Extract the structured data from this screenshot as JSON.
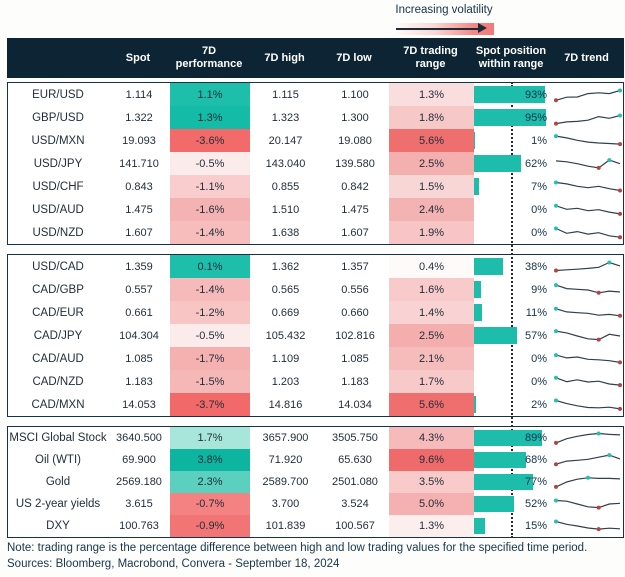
{
  "annotation": {
    "label": "Increasing volatility"
  },
  "columns": [
    "",
    "Spot",
    "7D performance",
    "7D high",
    "7D low",
    "7D trading range",
    "Spot position within range",
    "7D trend"
  ],
  "colors": {
    "header_bg": "#0c2433",
    "teal": "#1dbfab",
    "red": "#f26a6a",
    "navy_text": "#14334a",
    "bar": "#1dbcab",
    "spark_line": "#30404c",
    "spark_min_dot": "#b2433f",
    "spark_max_dot": "#25bfae"
  },
  "chart_data": {
    "type": "table",
    "title": "",
    "column_headers": [
      "Spot",
      "7D performance",
      "7D high",
      "7D low",
      "7D trading range",
      "Spot position within range",
      "7D trend"
    ],
    "blocks": [
      {
        "rows": [
          {
            "label": "EUR/USD",
            "spot": "1.114",
            "perf": "1.1%",
            "perf_color": "#1dbfab",
            "high": "1.115",
            "low": "1.100",
            "range": "1.3%",
            "range_color": "#fadddd",
            "position_pct": 93,
            "position_label": "93%",
            "trend": [
              0.12,
              0.34,
              0.36,
              0.6,
              0.66,
              0.6,
              0.82
            ]
          },
          {
            "label": "GBP/USD",
            "spot": "1.322",
            "perf": "1.3%",
            "perf_color": "#14bba6",
            "high": "1.323",
            "low": "1.300",
            "range": "1.8%",
            "range_color": "#f7c8c8",
            "position_pct": 95,
            "position_label": "95%",
            "trend": [
              0.1,
              0.22,
              0.26,
              0.34,
              0.6,
              0.48,
              0.68
            ]
          },
          {
            "label": "USD/MXN",
            "spot": "19.093",
            "perf": "-3.6%",
            "perf_color": "#f26a6a",
            "high": "20.147",
            "low": "19.080",
            "range": "5.6%",
            "range_color": "#ef6f6f",
            "position_pct": 1,
            "position_label": "1%",
            "trend": [
              0.85,
              0.72,
              0.55,
              0.42,
              0.36,
              0.32,
              0.28
            ]
          },
          {
            "label": "USD/JPY",
            "spot": "141.710",
            "perf": "-0.5%",
            "perf_color": "#fcebeb",
            "high": "143.040",
            "low": "139.580",
            "range": "2.5%",
            "range_color": "#f4afaf",
            "position_pct": 62,
            "position_label": "62%",
            "trend": [
              0.72,
              0.66,
              0.52,
              0.34,
              0.22,
              0.78,
              0.52
            ]
          },
          {
            "label": "USD/CHF",
            "spot": "0.843",
            "perf": "-1.1%",
            "perf_color": "#f9cdcd",
            "high": "0.855",
            "low": "0.842",
            "range": "1.5%",
            "range_color": "#f9d6d6",
            "position_pct": 7,
            "position_label": "7%",
            "trend": [
              0.82,
              0.72,
              0.55,
              0.45,
              0.55,
              0.38,
              0.25
            ]
          },
          {
            "label": "USD/AUD",
            "spot": "1.475",
            "perf": "-1.6%",
            "perf_color": "#f5b2b2",
            "high": "1.510",
            "low": "1.475",
            "range": "2.4%",
            "range_color": "#f4b3b3",
            "position_pct": 0,
            "position_label": "0%",
            "trend": [
              0.8,
              0.55,
              0.62,
              0.45,
              0.52,
              0.35,
              0.22
            ]
          },
          {
            "label": "USD/NZD",
            "spot": "1.607",
            "perf": "-1.4%",
            "perf_color": "#f7bcbc",
            "high": "1.638",
            "low": "1.607",
            "range": "1.9%",
            "range_color": "#f7c5c5",
            "position_pct": 0,
            "position_label": "0%",
            "trend": [
              0.82,
              0.48,
              0.6,
              0.42,
              0.52,
              0.3,
              0.2
            ]
          }
        ]
      },
      {
        "rows": [
          {
            "label": "USD/CAD",
            "spot": "1.359",
            "perf": "0.1%",
            "perf_color": "#1dbfab",
            "high": "1.362",
            "low": "1.357",
            "range": "0.4%",
            "range_color": "#fefafa",
            "position_pct": 38,
            "position_label": "38%",
            "trend": [
              0.25,
              0.3,
              0.34,
              0.4,
              0.48,
              0.82,
              0.58
            ]
          },
          {
            "label": "CAD/GBP",
            "spot": "0.557",
            "perf": "-1.4%",
            "perf_color": "#f7baba",
            "high": "0.565",
            "low": "0.556",
            "range": "1.6%",
            "range_color": "#f8caca",
            "position_pct": 9,
            "position_label": "9%",
            "trend": [
              0.85,
              0.6,
              0.55,
              0.5,
              0.3,
              0.42,
              0.36
            ]
          },
          {
            "label": "CAD/EUR",
            "spot": "0.661",
            "perf": "-1.2%",
            "perf_color": "#f8c5c5",
            "high": "0.669",
            "low": "0.660",
            "range": "1.4%",
            "range_color": "#f9d3d3",
            "position_pct": 11,
            "position_label": "11%",
            "trend": [
              0.8,
              0.58,
              0.52,
              0.48,
              0.34,
              0.4,
              0.3
            ]
          },
          {
            "label": "CAD/JPY",
            "spot": "104.304",
            "perf": "-0.5%",
            "perf_color": "#fcebeb",
            "high": "105.432",
            "low": "102.816",
            "range": "2.5%",
            "range_color": "#f4aeae",
            "position_pct": 57,
            "position_label": "57%",
            "trend": [
              0.85,
              0.72,
              0.5,
              0.3,
              0.24,
              0.62,
              0.5
            ]
          },
          {
            "label": "CAD/AUD",
            "spot": "1.085",
            "perf": "-1.7%",
            "perf_color": "#f5b0b0",
            "high": "1.109",
            "low": "1.085",
            "range": "2.1%",
            "range_color": "#f6bcbc",
            "position_pct": 0,
            "position_label": "0%",
            "trend": [
              0.78,
              0.58,
              0.64,
              0.48,
              0.44,
              0.38,
              0.26
            ]
          },
          {
            "label": "CAD/NZD",
            "spot": "1.183",
            "perf": "-1.5%",
            "perf_color": "#f6b7b7",
            "high": "1.203",
            "low": "1.183",
            "range": "1.7%",
            "range_color": "#f8c9c9",
            "position_pct": 0,
            "position_label": "0%",
            "trend": [
              0.8,
              0.52,
              0.66,
              0.5,
              0.56,
              0.36,
              0.28
            ]
          },
          {
            "label": "CAD/MXN",
            "spot": "14.053",
            "perf": "-3.7%",
            "perf_color": "#f26969",
            "high": "14.816",
            "low": "14.034",
            "range": "5.6%",
            "range_color": "#ef6f6f",
            "position_pct": 2,
            "position_label": "2%",
            "trend": [
              0.82,
              0.6,
              0.44,
              0.32,
              0.3,
              0.34,
              0.22
            ]
          }
        ]
      },
      {
        "rows": [
          {
            "label": "MSCI Global Stock",
            "spot": "3640.500",
            "perf": "1.7%",
            "perf_color": "#a9e6da",
            "high": "3657.900",
            "low": "3505.750",
            "range": "4.3%",
            "range_color": "#f7baba",
            "position_pct": 89,
            "position_label": "89%",
            "trend": [
              0.15,
              0.45,
              0.62,
              0.75,
              0.82,
              0.76,
              0.72
            ]
          },
          {
            "label": "Oil (WTI)",
            "spot": "69.900",
            "perf": "3.8%",
            "perf_color": "#0db4a0",
            "high": "71.920",
            "low": "65.630",
            "range": "9.6%",
            "range_color": "#ef6a6a",
            "position_pct": 68,
            "position_label": "68%",
            "trend": [
              0.2,
              0.42,
              0.48,
              0.55,
              0.7,
              0.85,
              0.58
            ]
          },
          {
            "label": "Gold",
            "spot": "2569.180",
            "perf": "2.3%",
            "perf_color": "#5bd0bf",
            "high": "2589.700",
            "low": "2501.080",
            "range": "3.5%",
            "range_color": "#f9caca",
            "position_pct": 77,
            "position_label": "77%",
            "trend": [
              0.15,
              0.5,
              0.7,
              0.8,
              0.76,
              0.76,
              0.72
            ]
          },
          {
            "label": "US 2-year yields",
            "spot": "3.615",
            "perf": "-0.7%",
            "perf_color": "#f58282",
            "high": "3.700",
            "low": "3.524",
            "range": "5.0%",
            "range_color": "#f5b1b1",
            "position_pct": 52,
            "position_label": "52%",
            "trend": [
              0.75,
              0.7,
              0.5,
              0.3,
              0.24,
              0.5,
              0.55
            ]
          },
          {
            "label": "DXY",
            "spot": "100.763",
            "perf": "-0.9%",
            "perf_color": "#f37474",
            "high": "101.839",
            "low": "100.567",
            "range": "1.3%",
            "range_color": "#fdeeee",
            "position_pct": 15,
            "position_label": "15%",
            "trend": [
              0.82,
              0.62,
              0.5,
              0.36,
              0.28,
              0.34,
              0.3
            ]
          }
        ]
      }
    ]
  },
  "notes": {
    "note": "Note: trading range is the percentage difference between high and low trading values for the specified time period.",
    "sources": "Sources: Bloomberg, Macrobond, Convera - September 18, 2024"
  }
}
